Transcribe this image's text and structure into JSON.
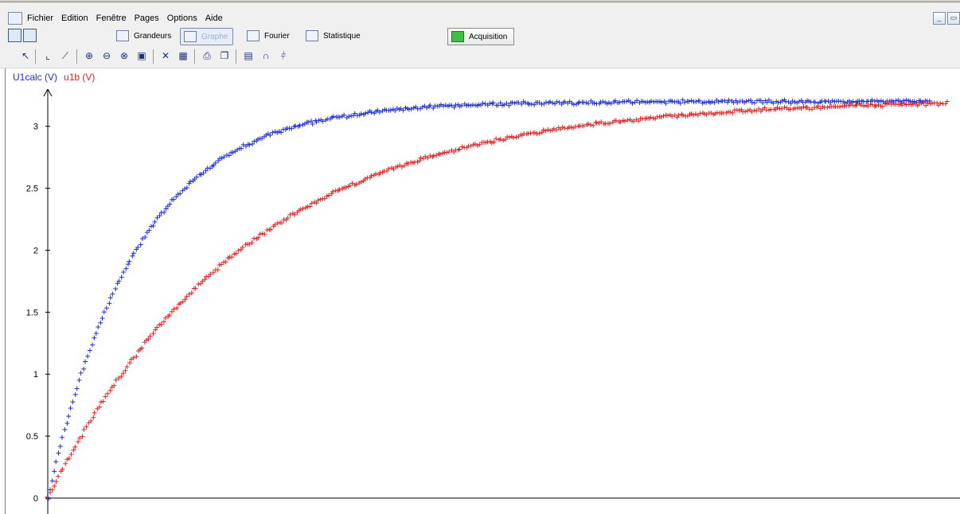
{
  "menu": {
    "items": [
      "Fichier",
      "Edition",
      "Fenêtre",
      "Pages",
      "Options",
      "Aide"
    ]
  },
  "toolbar": {
    "grandeurs_label": "Grandeurs",
    "graphe_label": "Graphe",
    "fourier_label": "Fourier",
    "statistique_label": "Statistique",
    "acquisition_label": "Acquisition"
  },
  "icons": {
    "tools": [
      "cursor-icon",
      "axes-icon",
      "modelize-icon",
      "zoom-in-icon",
      "zoom-out-icon",
      "zoom-reset-icon",
      "palette-icon",
      "tangent-icon",
      "table-icon",
      "print-icon",
      "copy-icon",
      "calc-icon",
      "curve-icon",
      "histogram-icon"
    ]
  },
  "colors": {
    "series1": "#1f2fd8",
    "series2": "#e32222"
  },
  "chart_data": {
    "type": "scatter",
    "ylim": [
      0,
      3.3
    ],
    "yticks": [
      "0",
      "0.5",
      "1",
      "1.5",
      "2",
      "2.5",
      "3"
    ],
    "grid": false,
    "legend": "top-left",
    "series": [
      {
        "name": "U1calc (V)",
        "color": "#1f2fd8",
        "final": 3.2,
        "tau": 0.1,
        "t_max": 0.98
      },
      {
        "name": "u1b (V)",
        "color": "#e32222",
        "final": 3.22,
        "tau": 0.22,
        "t_max": 1.0
      }
    ]
  }
}
